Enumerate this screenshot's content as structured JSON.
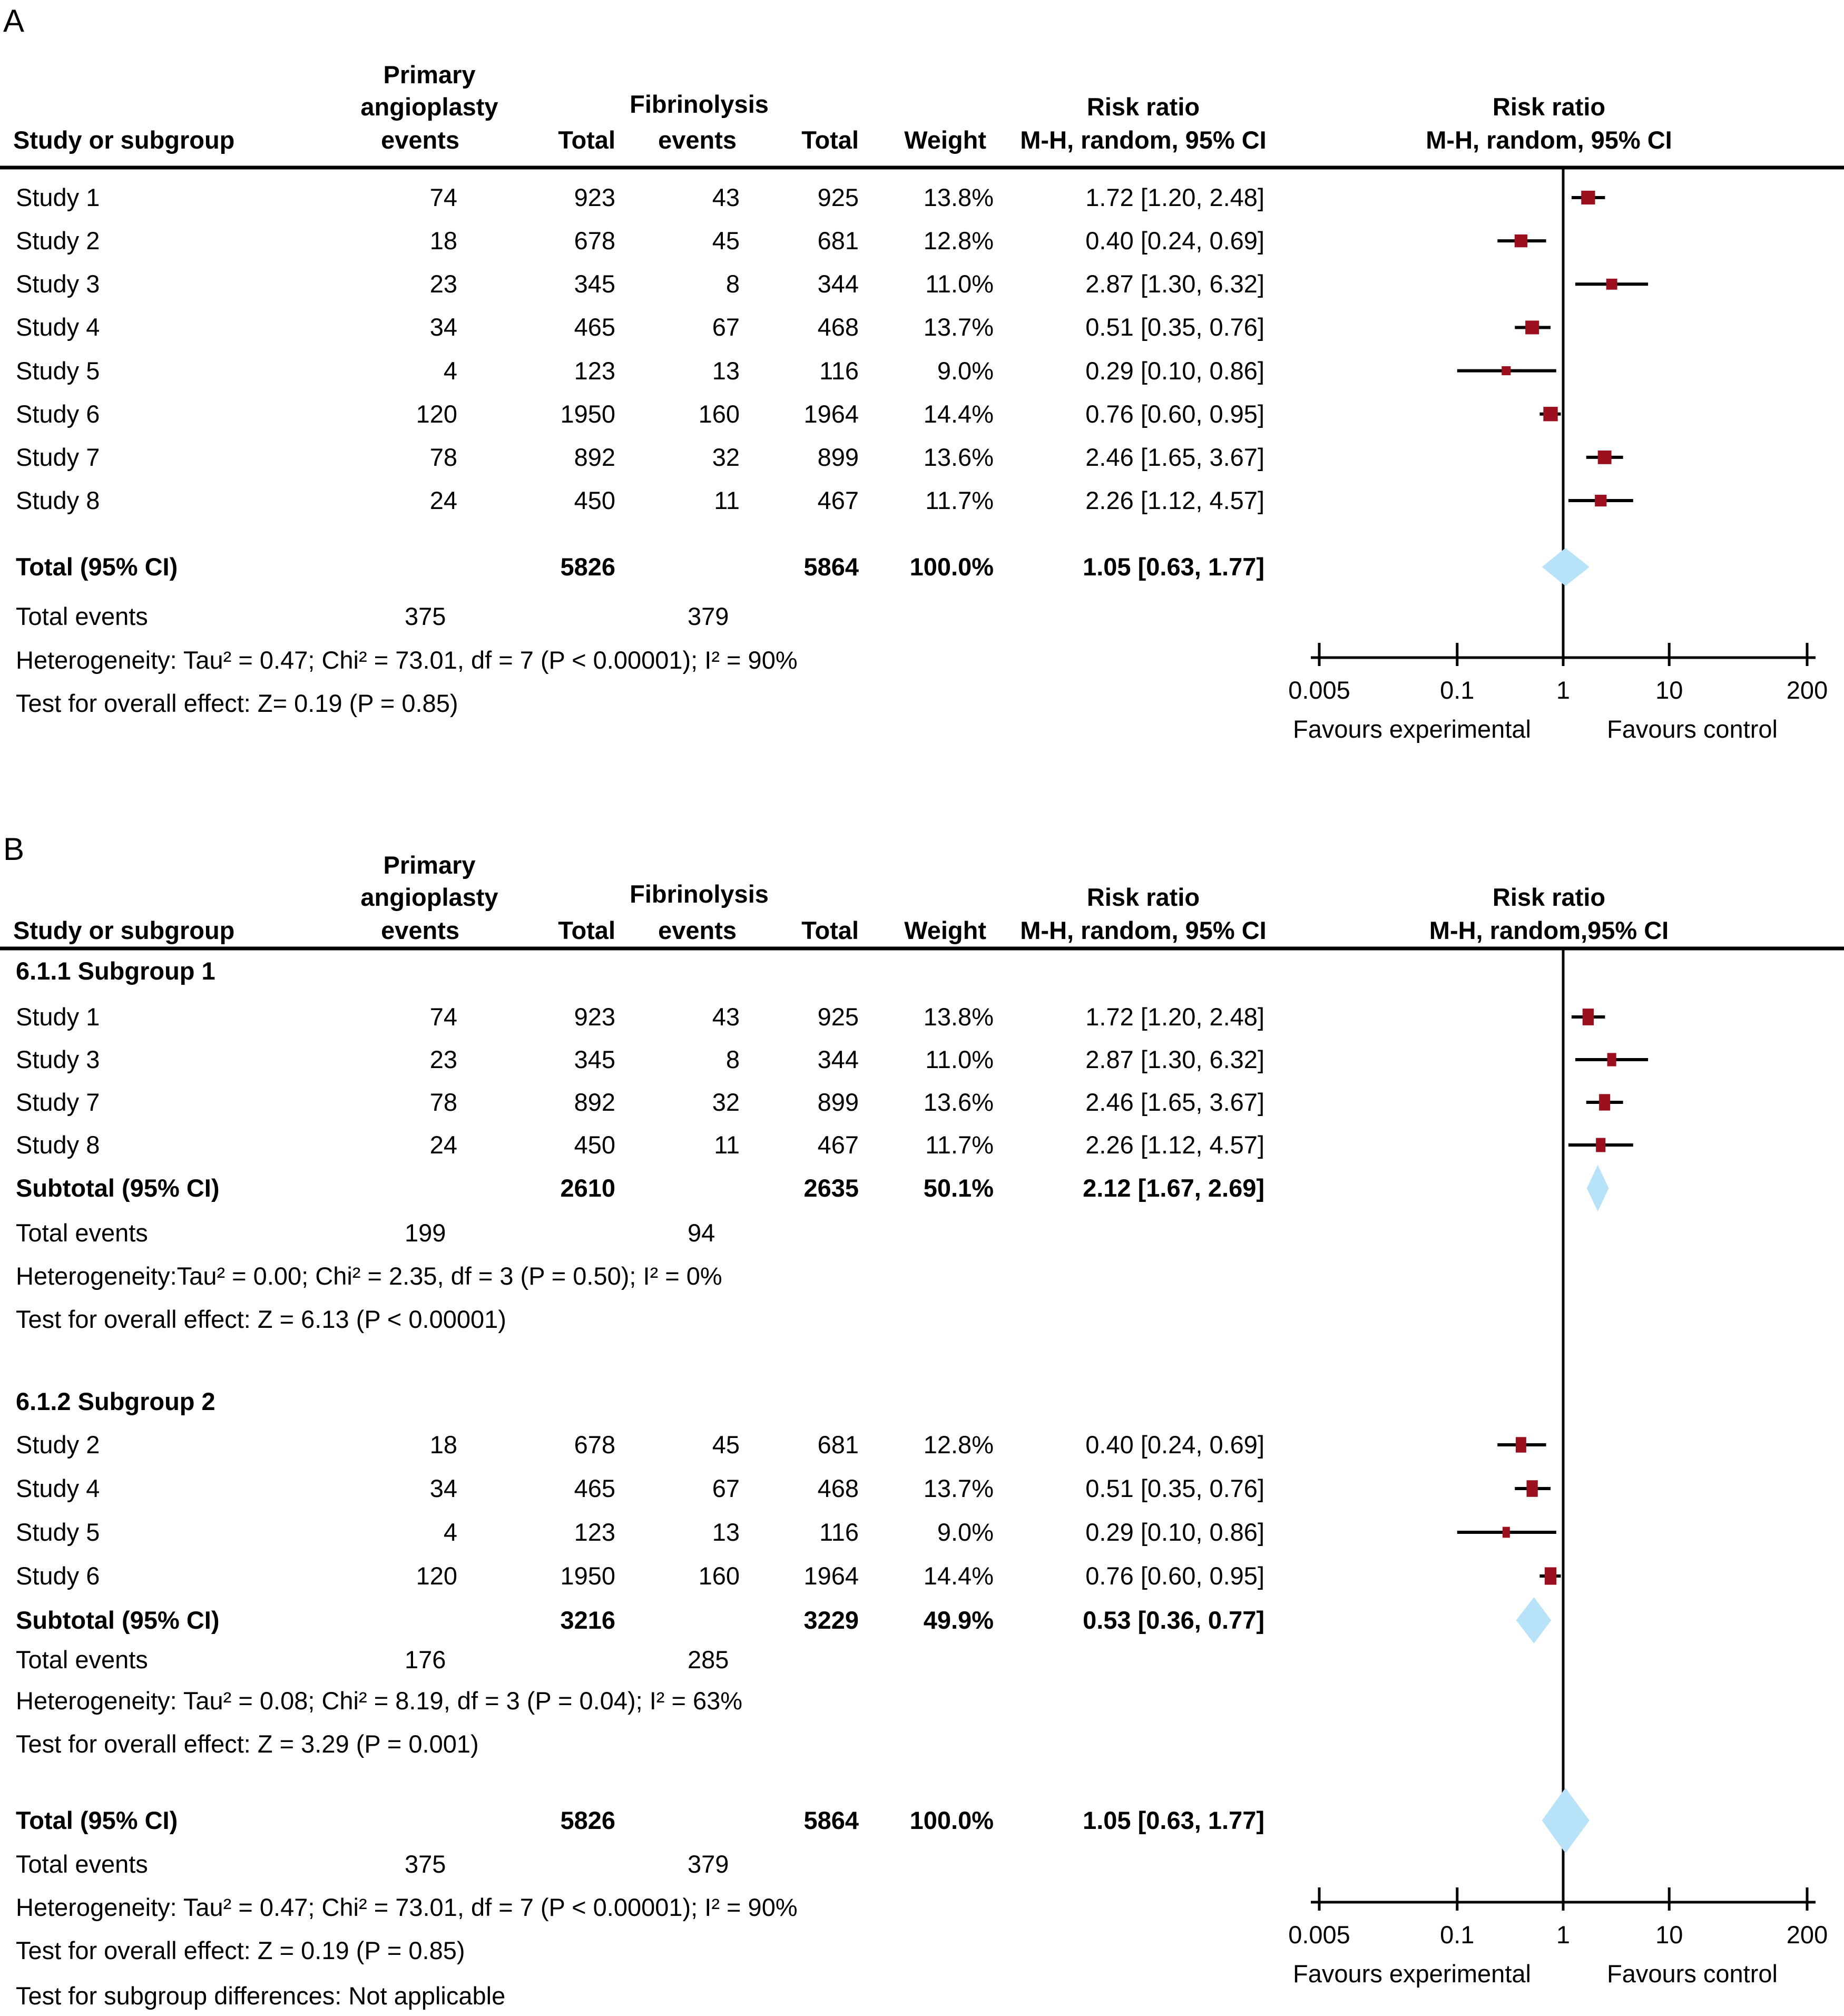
{
  "header": {
    "study_column": "Study or subgroup",
    "experimental_line1": "Primary",
    "experimental_line2": "angioplasty",
    "experimental_line3": "events",
    "total_column": "Total",
    "control_line1": "Fibrinolysis",
    "control_line2": "events",
    "weight_column": "Weight",
    "effect_line1": "Risk ratio",
    "effect_line2": "M-H, random, 95% CI",
    "effect_line2_plot_b": "M-H, random,95% CI"
  },
  "axis": {
    "scale": "log",
    "ticks": [
      0.005,
      0.1,
      1,
      10,
      200
    ],
    "tick_labels": [
      "0.005",
      "0.1",
      "1",
      "10",
      "200"
    ],
    "favours_left": "Favours experimental",
    "favours_right": "Favours control"
  },
  "colors": {
    "marker": "#9B0F1E",
    "diamond": "#B8E2F8",
    "line": "#000000",
    "text": "#000000",
    "background": "#FFFFFF"
  },
  "chart_data": {
    "type": "forest",
    "scale": "log",
    "xlim": [
      0.005,
      200
    ],
    "effect_measure": "Risk ratio",
    "method": "M-H, random, 95% CI",
    "panels": [
      {
        "label": "A",
        "sections": [
          {
            "title": null,
            "studies": [
              {
                "label": "Study 1",
                "exp_events": "74",
                "exp_total": "923",
                "ctrl_events": "43",
                "ctrl_total": "925",
                "weight": "13.8%",
                "rr_text": "1.72 [1.20, 2.48]",
                "rr": 1.72,
                "lo": 1.2,
                "hi": 2.48,
                "w": 13.8
              },
              {
                "label": "Study 2",
                "exp_events": "18",
                "exp_total": "678",
                "ctrl_events": "45",
                "ctrl_total": "681",
                "weight": "12.8%",
                "rr_text": "0.40 [0.24, 0.69]",
                "rr": 0.4,
                "lo": 0.24,
                "hi": 0.69,
                "w": 12.8
              },
              {
                "label": "Study 3",
                "exp_events": "23",
                "exp_total": "345",
                "ctrl_events": "8",
                "ctrl_total": "344",
                "weight": "11.0%",
                "rr_text": "2.87 [1.30, 6.32]",
                "rr": 2.87,
                "lo": 1.3,
                "hi": 6.32,
                "w": 11.0
              },
              {
                "label": "Study 4",
                "exp_events": "34",
                "exp_total": "465",
                "ctrl_events": "67",
                "ctrl_total": "468",
                "weight": "13.7%",
                "rr_text": "0.51 [0.35, 0.76]",
                "rr": 0.51,
                "lo": 0.35,
                "hi": 0.76,
                "w": 13.7
              },
              {
                "label": "Study 5",
                "exp_events": "4",
                "exp_total": "123",
                "ctrl_events": "13",
                "ctrl_total": "116",
                "weight": "9.0%",
                "rr_text": "0.29 [0.10, 0.86]",
                "rr": 0.29,
                "lo": 0.1,
                "hi": 0.86,
                "w": 9.0
              },
              {
                "label": "Study 6",
                "exp_events": "120",
                "exp_total": "1950",
                "ctrl_events": "160",
                "ctrl_total": "1964",
                "weight": "14.4%",
                "rr_text": "0.76 [0.60, 0.95]",
                "rr": 0.76,
                "lo": 0.6,
                "hi": 0.95,
                "w": 14.4
              },
              {
                "label": "Study 7",
                "exp_events": "78",
                "exp_total": "892",
                "ctrl_events": "32",
                "ctrl_total": "899",
                "weight": "13.6%",
                "rr_text": "2.46 [1.65, 3.67]",
                "rr": 2.46,
                "lo": 1.65,
                "hi": 3.67,
                "w": 13.6
              },
              {
                "label": "Study 8",
                "exp_events": "24",
                "exp_total": "450",
                "ctrl_events": "11",
                "ctrl_total": "467",
                "weight": "11.7%",
                "rr_text": "2.26 [1.12, 4.57]",
                "rr": 2.26,
                "lo": 1.12,
                "hi": 4.57,
                "w": 11.7
              }
            ]
          }
        ],
        "total": {
          "label": "Total (95% CI)",
          "exp_total": "5826",
          "ctrl_total": "5864",
          "weight": "100.0%",
          "rr_text": "1.05 [0.63, 1.77]",
          "rr": 1.05,
          "lo": 0.63,
          "hi": 1.77
        },
        "total_events": {
          "label": "Total events",
          "exp": "375",
          "ctrl": "379"
        },
        "heterogeneity": "Heterogeneity: Tau² = 0.47; Chi² = 73.01, df = 7 (P < 0.00001); I² = 90%",
        "overall_effect": "Test for overall effect: Z= 0.19 (P = 0.85)",
        "subgroup_difference": null
      },
      {
        "label": "B",
        "sections": [
          {
            "title": "6.1.1 Subgroup 1",
            "studies": [
              {
                "label": "Study 1",
                "exp_events": "74",
                "exp_total": "923",
                "ctrl_events": "43",
                "ctrl_total": "925",
                "weight": "13.8%",
                "rr_text": "1.72 [1.20, 2.48]",
                "rr": 1.72,
                "lo": 1.2,
                "hi": 2.48,
                "w": 13.8
              },
              {
                "label": "Study 3",
                "exp_events": "23",
                "exp_total": "345",
                "ctrl_events": "8",
                "ctrl_total": "344",
                "weight": "11.0%",
                "rr_text": "2.87 [1.30, 6.32]",
                "rr": 2.87,
                "lo": 1.3,
                "hi": 6.32,
                "w": 11.0
              },
              {
                "label": "Study 7",
                "exp_events": "78",
                "exp_total": "892",
                "ctrl_events": "32",
                "ctrl_total": "899",
                "weight": "13.6%",
                "rr_text": "2.46 [1.65, 3.67]",
                "rr": 2.46,
                "lo": 1.65,
                "hi": 3.67,
                "w": 13.6
              },
              {
                "label": "Study 8",
                "exp_events": "24",
                "exp_total": "450",
                "ctrl_events": "11",
                "ctrl_total": "467",
                "weight": "11.7%",
                "rr_text": "2.26 [1.12, 4.57]",
                "rr": 2.26,
                "lo": 1.12,
                "hi": 4.57,
                "w": 11.7
              }
            ],
            "subtotal": {
              "label": "Subtotal (95% CI)",
              "exp_total": "2610",
              "ctrl_total": "2635",
              "weight": "50.1%",
              "rr_text": "2.12 [1.67, 2.69]",
              "rr": 2.12,
              "lo": 1.67,
              "hi": 2.69
            },
            "total_events": {
              "label": "Total events",
              "exp": "199",
              "ctrl": "94"
            },
            "heterogeneity": "Heterogeneity:Tau² = 0.00; Chi² = 2.35, df = 3 (P = 0.50); I² = 0%",
            "overall_effect": "Test for overall effect: Z = 6.13 (P < 0.00001)"
          },
          {
            "title": "6.1.2 Subgroup 2",
            "studies": [
              {
                "label": "Study 2",
                "exp_events": "18",
                "exp_total": "678",
                "ctrl_events": "45",
                "ctrl_total": "681",
                "weight": "12.8%",
                "rr_text": "0.40 [0.24, 0.69]",
                "rr": 0.4,
                "lo": 0.24,
                "hi": 0.69,
                "w": 12.8
              },
              {
                "label": "Study 4",
                "exp_events": "34",
                "exp_total": "465",
                "ctrl_events": "67",
                "ctrl_total": "468",
                "weight": "13.7%",
                "rr_text": "0.51 [0.35, 0.76]",
                "rr": 0.51,
                "lo": 0.35,
                "hi": 0.76,
                "w": 13.7
              },
              {
                "label": "Study 5",
                "exp_events": "4",
                "exp_total": "123",
                "ctrl_events": "13",
                "ctrl_total": "116",
                "weight": "9.0%",
                "rr_text": "0.29 [0.10, 0.86]",
                "rr": 0.29,
                "lo": 0.1,
                "hi": 0.86,
                "w": 9.0
              },
              {
                "label": "Study 6",
                "exp_events": "120",
                "exp_total": "1950",
                "ctrl_events": "160",
                "ctrl_total": "1964",
                "weight": "14.4%",
                "rr_text": "0.76 [0.60, 0.95]",
                "rr": 0.76,
                "lo": 0.6,
                "hi": 0.95,
                "w": 14.4
              }
            ],
            "subtotal": {
              "label": "Subtotal (95% CI)",
              "exp_total": "3216",
              "ctrl_total": "3229",
              "weight": "49.9%",
              "rr_text": "0.53 [0.36, 0.77]",
              "rr": 0.53,
              "lo": 0.36,
              "hi": 0.77
            },
            "total_events": {
              "label": "Total events",
              "exp": "176",
              "ctrl": "285"
            },
            "heterogeneity": "Heterogeneity: Tau² = 0.08; Chi² = 8.19, df = 3 (P = 0.04); I² = 63%",
            "overall_effect": "Test for overall effect: Z = 3.29 (P = 0.001)"
          }
        ],
        "total": {
          "label": "Total (95% CI)",
          "exp_total": "5826",
          "ctrl_total": "5864",
          "weight": "100.0%",
          "rr_text": "1.05 [0.63, 1.77]",
          "rr": 1.05,
          "lo": 0.63,
          "hi": 1.77
        },
        "total_events": {
          "label": "Total events",
          "exp": "375",
          "ctrl": "379"
        },
        "heterogeneity": "Heterogeneity: Tau² = 0.47; Chi² = 73.01, df = 7 (P < 0.00001); I² = 90%",
        "overall_effect": "Test for overall effect: Z = 0.19 (P = 0.85)",
        "subgroup_difference": "Test for subgroup differences: Not applicable"
      }
    ]
  }
}
